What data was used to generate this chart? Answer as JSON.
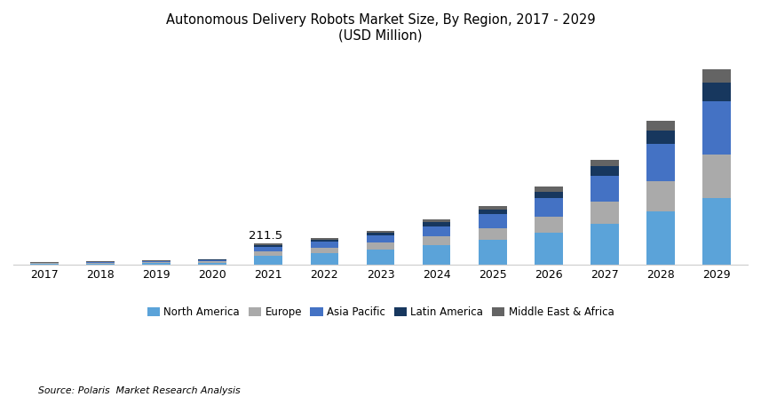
{
  "title_line1": "Autonomous Delivery Robots Market Size, By Region, 2017 - 2029",
  "title_line2": "(USD Million)",
  "years": [
    2017,
    2018,
    2019,
    2020,
    2021,
    2022,
    2023,
    2024,
    2025,
    2026,
    2027,
    2028,
    2029
  ],
  "segment_names": [
    "North America",
    "Europe",
    "Asia Pacific",
    "Latin America",
    "Middle East & Africa"
  ],
  "segment_colors": [
    "#5BA3D9",
    "#AAAAAA",
    "#4472C4",
    "#17375E",
    "#646464"
  ],
  "segment_values": [
    [
      12,
      15,
      18,
      25,
      95,
      120,
      150,
      195,
      250,
      320,
      410,
      525,
      660
    ],
    [
      6,
      8,
      10,
      14,
      42,
      52,
      68,
      88,
      115,
      155,
      210,
      300,
      430
    ],
    [
      5,
      7,
      9,
      12,
      45,
      58,
      75,
      100,
      135,
      180,
      255,
      365,
      520
    ],
    [
      2,
      3,
      4,
      5,
      18,
      22,
      28,
      37,
      50,
      68,
      95,
      135,
      185
    ],
    [
      2,
      2,
      3,
      4,
      12,
      15,
      19,
      26,
      35,
      47,
      68,
      95,
      130
    ]
  ],
  "annotation_year_idx": 4,
  "annotation_text": "211.5",
  "source_text": "Source: Polaris  Market Research Analysis",
  "background_color": "#FFFFFF",
  "bar_width": 0.5,
  "ylim_max": 2100
}
